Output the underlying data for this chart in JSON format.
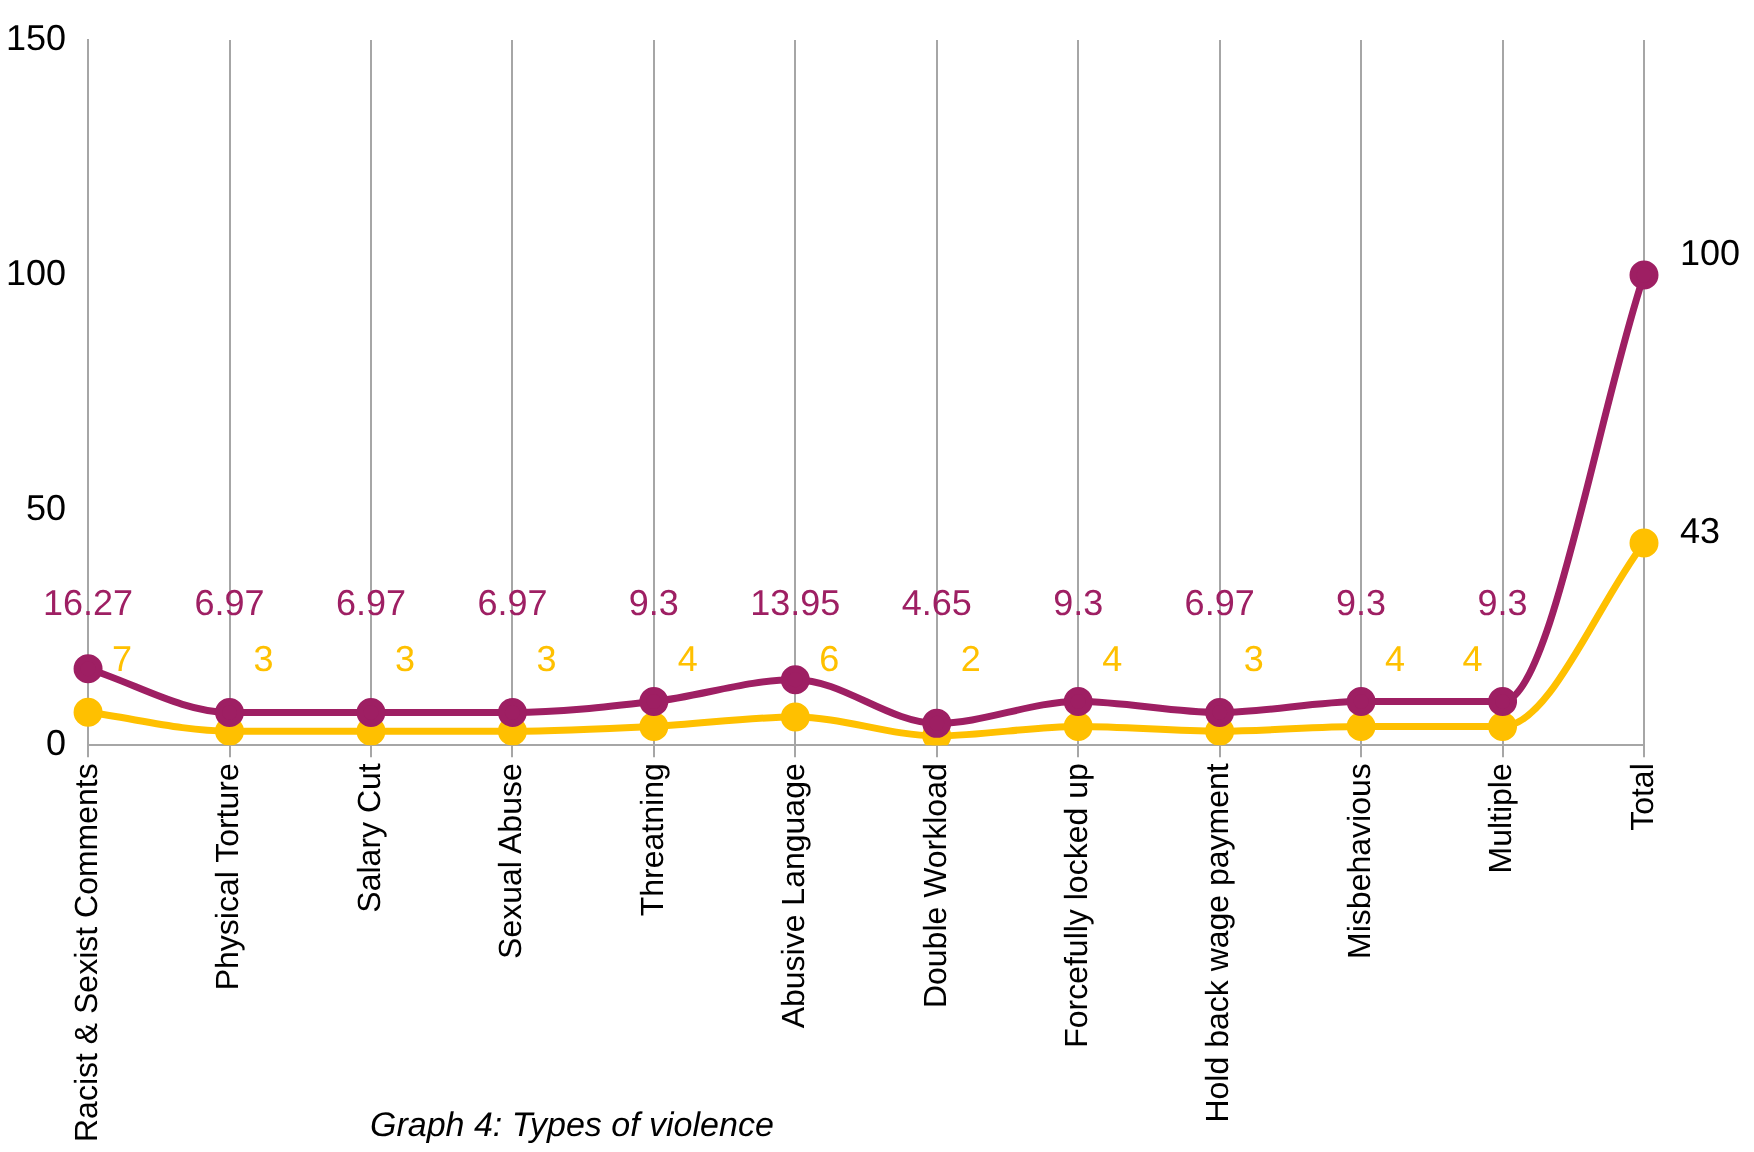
{
  "chart_data": {
    "type": "line",
    "categories": [
      "Racist & Sexist Comments",
      "Physical Torture",
      "Salary Cut",
      "Sexual Abuse",
      "Threatning",
      "Abusive Language",
      "Double Workload",
      "Forcefully locked up",
      "Hold back wage payment",
      "Misbehavious",
      "Multiple",
      "Total"
    ],
    "series": [
      {
        "color": "#9e1f63",
        "values": [
          16.27,
          6.97,
          6.97,
          6.97,
          9.3,
          13.95,
          4.65,
          9.3,
          6.97,
          9.3,
          9.3,
          100
        ]
      },
      {
        "color": "#ffc000",
        "values": [
          7,
          3,
          3,
          3,
          4,
          6,
          2,
          4,
          3,
          4,
          4,
          43
        ]
      }
    ],
    "ylim": [
      0,
      150
    ],
    "yticks": [
      0,
      50,
      100,
      150
    ],
    "grid": "x",
    "legend": false,
    "marker": "circle",
    "line_style": "solid",
    "data_labels": true,
    "annotations": [
      "Graph 4: Types of violence"
    ]
  }
}
